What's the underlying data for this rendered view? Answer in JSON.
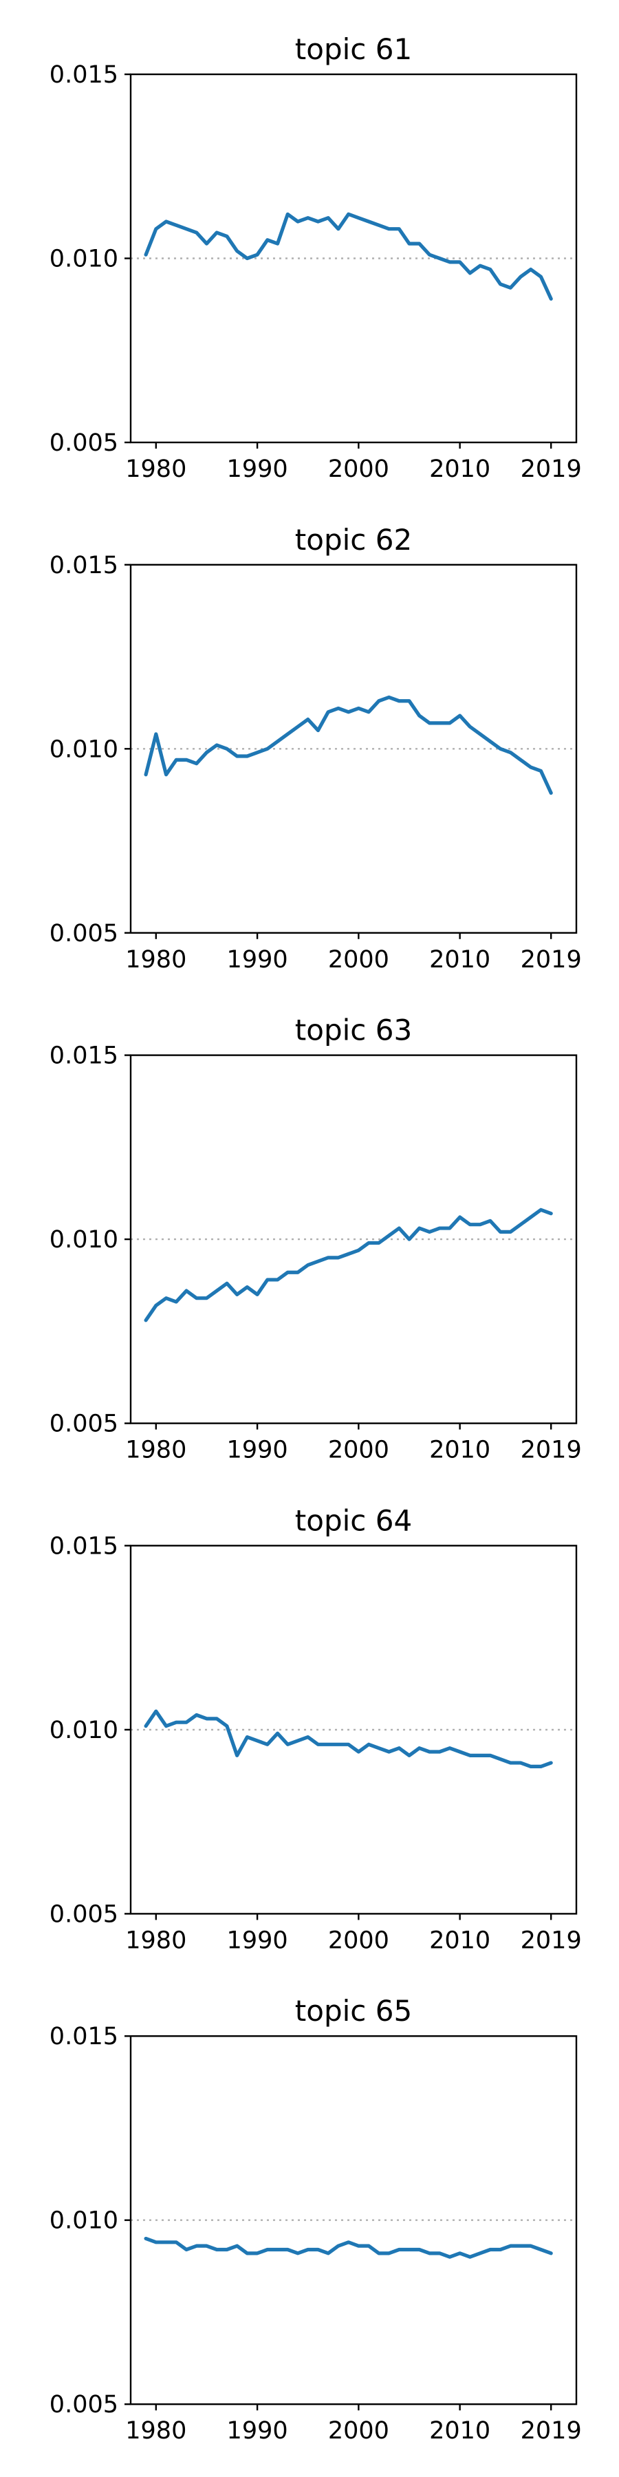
{
  "colors": {
    "series": "#1f77b4",
    "reference": "#b0b0b0",
    "axis": "#000000"
  },
  "chart_data": [
    {
      "type": "line",
      "title": "topic 61",
      "xlabel": "",
      "ylabel": "",
      "xlim": [
        1977.5,
        2021.5
      ],
      "ylim": [
        0.005,
        0.015
      ],
      "xticks": [
        1980,
        1990,
        2000,
        2010,
        2019
      ],
      "xtick_labels": [
        "1980",
        "1990",
        "2000",
        "2010",
        "2019"
      ],
      "yticks": [
        0.005,
        0.01,
        0.015
      ],
      "ytick_labels": [
        "0.005",
        "0.010",
        "0.015"
      ],
      "reference_line": {
        "y": 0.01,
        "style": "dotted"
      },
      "grid": false,
      "x": [
        1979,
        1980,
        1981,
        1982,
        1983,
        1984,
        1985,
        1986,
        1987,
        1988,
        1989,
        1990,
        1991,
        1992,
        1993,
        1994,
        1995,
        1996,
        1997,
        1998,
        1999,
        2000,
        2001,
        2002,
        2003,
        2004,
        2005,
        2006,
        2007,
        2008,
        2009,
        2010,
        2011,
        2012,
        2013,
        2014,
        2015,
        2016,
        2017,
        2018,
        2019
      ],
      "series": [
        {
          "values": [
            0.0101,
            0.0108,
            0.011,
            0.0109,
            0.0108,
            0.0107,
            0.0104,
            0.0107,
            0.0106,
            0.0102,
            0.01,
            0.0101,
            0.0105,
            0.0104,
            0.0112,
            0.011,
            0.0111,
            0.011,
            0.0111,
            0.0108,
            0.0112,
            0.0111,
            0.011,
            0.0109,
            0.0108,
            0.0108,
            0.0104,
            0.0104,
            0.0101,
            0.01,
            0.0099,
            0.0099,
            0.0096,
            0.0098,
            0.0097,
            0.0093,
            0.0092,
            0.0095,
            0.0097,
            0.0095,
            0.0089
          ]
        }
      ]
    },
    {
      "type": "line",
      "title": "topic 62",
      "xlabel": "",
      "ylabel": "",
      "xlim": [
        1977.5,
        2021.5
      ],
      "ylim": [
        0.005,
        0.015
      ],
      "xticks": [
        1980,
        1990,
        2000,
        2010,
        2019
      ],
      "xtick_labels": [
        "1980",
        "1990",
        "2000",
        "2010",
        "2019"
      ],
      "yticks": [
        0.005,
        0.01,
        0.015
      ],
      "ytick_labels": [
        "0.005",
        "0.010",
        "0.015"
      ],
      "reference_line": {
        "y": 0.01,
        "style": "dotted"
      },
      "grid": false,
      "x": [
        1979,
        1980,
        1981,
        1982,
        1983,
        1984,
        1985,
        1986,
        1987,
        1988,
        1989,
        1990,
        1991,
        1992,
        1993,
        1994,
        1995,
        1996,
        1997,
        1998,
        1999,
        2000,
        2001,
        2002,
        2003,
        2004,
        2005,
        2006,
        2007,
        2008,
        2009,
        2010,
        2011,
        2012,
        2013,
        2014,
        2015,
        2016,
        2017,
        2018,
        2019
      ],
      "series": [
        {
          "values": [
            0.0093,
            0.0104,
            0.0093,
            0.0097,
            0.0097,
            0.0096,
            0.0099,
            0.0101,
            0.01,
            0.0098,
            0.0098,
            0.0099,
            0.01,
            0.0102,
            0.0104,
            0.0106,
            0.0108,
            0.0105,
            0.011,
            0.0111,
            0.011,
            0.0111,
            0.011,
            0.0113,
            0.0114,
            0.0113,
            0.0113,
            0.0109,
            0.0107,
            0.0107,
            0.0107,
            0.0109,
            0.0106,
            0.0104,
            0.0102,
            0.01,
            0.0099,
            0.0097,
            0.0095,
            0.0094,
            0.0088
          ]
        }
      ]
    },
    {
      "type": "line",
      "title": "topic 63",
      "xlabel": "",
      "ylabel": "",
      "xlim": [
        1977.5,
        2021.5
      ],
      "ylim": [
        0.005,
        0.015
      ],
      "xticks": [
        1980,
        1990,
        2000,
        2010,
        2019
      ],
      "xtick_labels": [
        "1980",
        "1990",
        "2000",
        "2010",
        "2019"
      ],
      "yticks": [
        0.005,
        0.01,
        0.015
      ],
      "ytick_labels": [
        "0.005",
        "0.010",
        "0.015"
      ],
      "reference_line": {
        "y": 0.01,
        "style": "dotted"
      },
      "grid": false,
      "x": [
        1979,
        1980,
        1981,
        1982,
        1983,
        1984,
        1985,
        1986,
        1987,
        1988,
        1989,
        1990,
        1991,
        1992,
        1993,
        1994,
        1995,
        1996,
        1997,
        1998,
        1999,
        2000,
        2001,
        2002,
        2003,
        2004,
        2005,
        2006,
        2007,
        2008,
        2009,
        2010,
        2011,
        2012,
        2013,
        2014,
        2015,
        2016,
        2017,
        2018,
        2019
      ],
      "series": [
        {
          "values": [
            0.0078,
            0.0082,
            0.0084,
            0.0083,
            0.0086,
            0.0084,
            0.0084,
            0.0086,
            0.0088,
            0.0085,
            0.0087,
            0.0085,
            0.0089,
            0.0089,
            0.0091,
            0.0091,
            0.0093,
            0.0094,
            0.0095,
            0.0095,
            0.0096,
            0.0097,
            0.0099,
            0.0099,
            0.0101,
            0.0103,
            0.01,
            0.0103,
            0.0102,
            0.0103,
            0.0103,
            0.0106,
            0.0104,
            0.0104,
            0.0105,
            0.0102,
            0.0102,
            0.0104,
            0.0106,
            0.0108,
            0.0107
          ]
        }
      ]
    },
    {
      "type": "line",
      "title": "topic 64",
      "xlabel": "",
      "ylabel": "",
      "xlim": [
        1977.5,
        2021.5
      ],
      "ylim": [
        0.005,
        0.015
      ],
      "xticks": [
        1980,
        1990,
        2000,
        2010,
        2019
      ],
      "xtick_labels": [
        "1980",
        "1990",
        "2000",
        "2010",
        "2019"
      ],
      "yticks": [
        0.005,
        0.01,
        0.015
      ],
      "ytick_labels": [
        "0.005",
        "0.010",
        "0.015"
      ],
      "reference_line": {
        "y": 0.01,
        "style": "dotted"
      },
      "grid": false,
      "x": [
        1979,
        1980,
        1981,
        1982,
        1983,
        1984,
        1985,
        1986,
        1987,
        1988,
        1989,
        1990,
        1991,
        1992,
        1993,
        1994,
        1995,
        1996,
        1997,
        1998,
        1999,
        2000,
        2001,
        2002,
        2003,
        2004,
        2005,
        2006,
        2007,
        2008,
        2009,
        2010,
        2011,
        2012,
        2013,
        2014,
        2015,
        2016,
        2017,
        2018,
        2019
      ],
      "series": [
        {
          "values": [
            0.0101,
            0.0105,
            0.0101,
            0.0102,
            0.0102,
            0.0104,
            0.0103,
            0.0103,
            0.0101,
            0.0093,
            0.0098,
            0.0097,
            0.0096,
            0.0099,
            0.0096,
            0.0097,
            0.0098,
            0.0096,
            0.0096,
            0.0096,
            0.0096,
            0.0094,
            0.0096,
            0.0095,
            0.0094,
            0.0095,
            0.0093,
            0.0095,
            0.0094,
            0.0094,
            0.0095,
            0.0094,
            0.0093,
            0.0093,
            0.0093,
            0.0092,
            0.0091,
            0.0091,
            0.009,
            0.009,
            0.0091
          ]
        }
      ]
    },
    {
      "type": "line",
      "title": "topic 65",
      "xlabel": "",
      "ylabel": "",
      "xlim": [
        1977.5,
        2021.5
      ],
      "ylim": [
        0.005,
        0.015
      ],
      "xticks": [
        1980,
        1990,
        2000,
        2010,
        2019
      ],
      "xtick_labels": [
        "1980",
        "1990",
        "2000",
        "2010",
        "2019"
      ],
      "yticks": [
        0.005,
        0.01,
        0.015
      ],
      "ytick_labels": [
        "0.005",
        "0.010",
        "0.015"
      ],
      "reference_line": {
        "y": 0.01,
        "style": "dotted"
      },
      "grid": false,
      "x": [
        1979,
        1980,
        1981,
        1982,
        1983,
        1984,
        1985,
        1986,
        1987,
        1988,
        1989,
        1990,
        1991,
        1992,
        1993,
        1994,
        1995,
        1996,
        1997,
        1998,
        1999,
        2000,
        2001,
        2002,
        2003,
        2004,
        2005,
        2006,
        2007,
        2008,
        2009,
        2010,
        2011,
        2012,
        2013,
        2014,
        2015,
        2016,
        2017,
        2018,
        2019
      ],
      "series": [
        {
          "values": [
            0.0095,
            0.0094,
            0.0094,
            0.0094,
            0.0092,
            0.0093,
            0.0093,
            0.0092,
            0.0092,
            0.0093,
            0.0091,
            0.0091,
            0.0092,
            0.0092,
            0.0092,
            0.0091,
            0.0092,
            0.0092,
            0.0091,
            0.0093,
            0.0094,
            0.0093,
            0.0093,
            0.0091,
            0.0091,
            0.0092,
            0.0092,
            0.0092,
            0.0091,
            0.0091,
            0.009,
            0.0091,
            0.009,
            0.0091,
            0.0092,
            0.0092,
            0.0093,
            0.0093,
            0.0093,
            0.0092,
            0.0091
          ]
        }
      ]
    }
  ]
}
